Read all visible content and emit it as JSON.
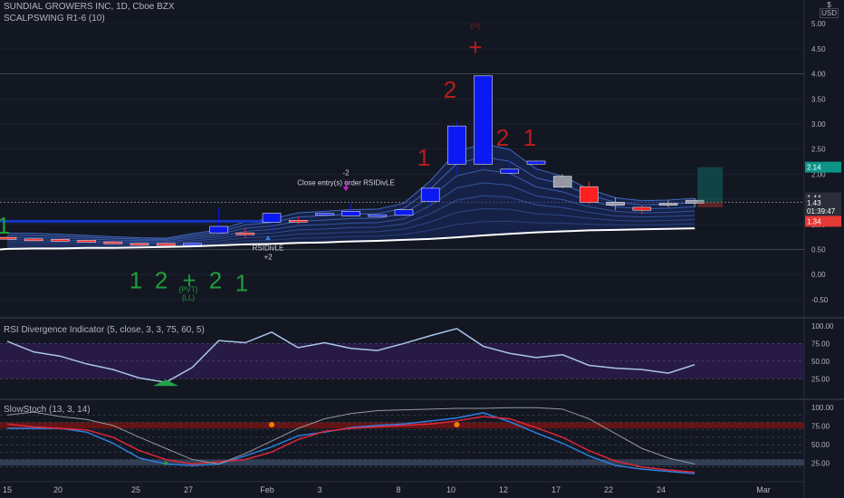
{
  "header": {
    "symbol_line": "SUNDIAL GROWERS INC, 1D, Cboe BZX",
    "indicator": "SCALPSWING R1-6 (10)",
    "currency": "USD"
  },
  "panes": {
    "rsi_title": "RSI Divergence Indicator (5, close, 3, 3, 75, 60, 5)",
    "stoch_title": "SlowStoch (13, 3, 14)"
  },
  "colors": {
    "background": "#131722",
    "bull_candle": "#0b19f2",
    "bear_candle": "#ff1f1f",
    "neutral_candle": "#9598a1",
    "rsi_line": "#a9c4e8",
    "stoch_k": "#2e7fe0",
    "stoch_d": "#e0263a",
    "long_ma": "#ffffff",
    "green_label": "#1e9e3a",
    "red_label": "#b71c1c"
  },
  "price_labels": [
    {
      "text": "2.14",
      "bg": "#0d9488"
    },
    {
      "text": "1.44",
      "bg": "#2a2e39"
    },
    {
      "text": "1.43",
      "bg": "#2a2e39"
    },
    {
      "text": "01:39:47",
      "bg": "#2a2e39"
    },
    {
      "text": "1.34",
      "bg": "#e53935"
    }
  ],
  "annotations": {
    "close_entry": "-2\nClose entry(s) order RSIDivLE",
    "rsidivle": "RSIDivLE\n+2",
    "pvt": "{PVT}\n{LL}",
    "top_marker": "{H}"
  },
  "swing_labels": [
    {
      "text": "1",
      "color": "green"
    },
    {
      "text": "1",
      "color": "green"
    },
    {
      "text": "2",
      "color": "green"
    },
    {
      "text": "+",
      "color": "green"
    },
    {
      "text": "2",
      "color": "green"
    },
    {
      "text": "1",
      "color": "green"
    },
    {
      "text": "1",
      "color": "red"
    },
    {
      "text": "2",
      "color": "red"
    },
    {
      "text": "+",
      "color": "red"
    },
    {
      "text": "2",
      "color": "red"
    },
    {
      "text": "1",
      "color": "red"
    }
  ],
  "chart_data": [
    {
      "type": "candlestick",
      "title": "SUNDIAL GROWERS INC, 1D, Cboe BZX",
      "y_ticks": [
        5.0,
        4.5,
        4.0,
        3.5,
        3.0,
        2.5,
        2.0,
        1.5,
        1.0,
        0.5,
        0.0,
        -0.5
      ],
      "ylim": [
        -0.8,
        5.4
      ],
      "x_ticks": [
        "15",
        "20",
        "25",
        "27",
        "Feb",
        "3",
        "8",
        "10",
        "12",
        "17",
        "22",
        "24",
        "Mar"
      ],
      "candles": [
        {
          "o": 0.74,
          "h": 0.76,
          "l": 0.7,
          "c": 0.71
        },
        {
          "o": 0.71,
          "h": 0.73,
          "l": 0.69,
          "c": 0.7
        },
        {
          "o": 0.7,
          "h": 0.72,
          "l": 0.68,
          "c": 0.69
        },
        {
          "o": 0.68,
          "h": 0.69,
          "l": 0.65,
          "c": 0.66
        },
        {
          "o": 0.65,
          "h": 0.67,
          "l": 0.61,
          "c": 0.62
        },
        {
          "o": 0.62,
          "h": 0.64,
          "l": 0.58,
          "c": 0.6
        },
        {
          "o": 0.62,
          "h": 0.66,
          "l": 0.58,
          "c": 0.58
        },
        {
          "o": 0.6,
          "h": 0.65,
          "l": 0.58,
          "c": 0.62
        },
        {
          "o": 0.83,
          "h": 1.34,
          "l": 0.8,
          "c": 0.96
        },
        {
          "o": 0.83,
          "h": 0.92,
          "l": 0.72,
          "c": 0.82
        },
        {
          "o": 1.04,
          "h": 1.2,
          "l": 0.85,
          "c": 1.22
        },
        {
          "o": 1.08,
          "h": 1.16,
          "l": 1.0,
          "c": 1.05
        },
        {
          "o": 1.22,
          "h": 1.28,
          "l": 1.18,
          "c": 1.21
        },
        {
          "o": 1.26,
          "h": 1.42,
          "l": 1.23,
          "c": 1.17
        },
        {
          "o": 1.16,
          "h": 1.19,
          "l": 1.12,
          "c": 1.19
        },
        {
          "o": 1.18,
          "h": 1.3,
          "l": 1.16,
          "c": 1.29
        },
        {
          "o": 1.46,
          "h": 1.78,
          "l": 1.38,
          "c": 1.72
        },
        {
          "o": 2.2,
          "h": 3.06,
          "l": 2.02,
          "c": 2.96
        },
        {
          "o": 2.2,
          "h": 3.98,
          "l": 2.1,
          "c": 3.96
        },
        {
          "o": 2.02,
          "h": 2.28,
          "l": 1.92,
          "c": 2.1
        },
        {
          "o": 2.2,
          "h": 2.28,
          "l": 2.06,
          "c": 2.26
        },
        {
          "o": 1.96,
          "h": 2.0,
          "l": 1.72,
          "c": 1.74
        },
        {
          "o": 1.75,
          "h": 1.85,
          "l": 1.4,
          "c": 1.44
        },
        {
          "o": 1.44,
          "h": 1.54,
          "l": 1.28,
          "c": 1.38
        },
        {
          "o": 1.34,
          "h": 1.38,
          "l": 1.2,
          "c": 1.28
        },
        {
          "o": 1.38,
          "h": 1.48,
          "l": 1.34,
          "c": 1.42
        },
        {
          "o": 1.42,
          "h": 1.52,
          "l": 1.34,
          "c": 1.48
        }
      ],
      "candle_colors": [
        "bear",
        "bear",
        "bear",
        "bear",
        "bear",
        "bear",
        "bear",
        "bull",
        "bull",
        "bear",
        "bull",
        "bear",
        "bull",
        "bull",
        "bull",
        "bull",
        "bull",
        "bull",
        "bull",
        "bull",
        "bull",
        "neutral",
        "bear",
        "neutral",
        "bear",
        "neutral",
        "neutral"
      ],
      "long_ma": [
        0.51,
        0.52,
        0.52,
        0.53,
        0.53,
        0.54,
        0.55,
        0.56,
        0.58,
        0.6,
        0.61,
        0.63,
        0.64,
        0.66,
        0.67,
        0.69,
        0.71,
        0.74,
        0.78,
        0.81,
        0.84,
        0.86,
        0.88,
        0.89,
        0.9,
        0.91,
        0.92
      ]
    },
    {
      "type": "line",
      "title": "RSI Divergence Indicator (5, close, 3, 3, 75, 60, 5)",
      "y_ticks": [
        100.0,
        75.0,
        50.0,
        25.0
      ],
      "ylim": [
        10,
        110
      ],
      "band": [
        25,
        75
      ],
      "series": [
        {
          "values": [
            78,
            63,
            57,
            46,
            38,
            26,
            20,
            41,
            79,
            76,
            91,
            69,
            76,
            68,
            65,
            75,
            86,
            96,
            71,
            61,
            55,
            59,
            44,
            40,
            38,
            33,
            45
          ]
        }
      ]
    },
    {
      "type": "line",
      "title": "SlowStoch (13, 3, 14)",
      "y_ticks": [
        100.0,
        75.0,
        50.0,
        25.0
      ],
      "ylim": [
        5,
        110
      ],
      "series": [
        {
          "values": [
            72,
            72,
            72,
            67,
            52,
            32,
            24,
            22,
            24,
            35,
            47,
            62,
            67,
            73,
            76,
            78,
            82,
            86,
            93,
            81,
            66,
            52,
            35,
            22,
            17,
            14,
            11
          ]
        },
        {
          "values": [
            78,
            74,
            72,
            70,
            60,
            42,
            30,
            24,
            27,
            30,
            40,
            57,
            68,
            72,
            74,
            76,
            78,
            82,
            88,
            85,
            73,
            60,
            42,
            28,
            20,
            16,
            13
          ]
        },
        {
          "values": [
            90,
            94,
            88,
            84,
            76,
            60,
            45,
            30,
            24,
            38,
            55,
            72,
            85,
            92,
            96,
            97,
            98,
            99,
            99,
            100,
            100,
            98,
            85,
            65,
            45,
            32,
            24
          ]
        }
      ]
    }
  ]
}
